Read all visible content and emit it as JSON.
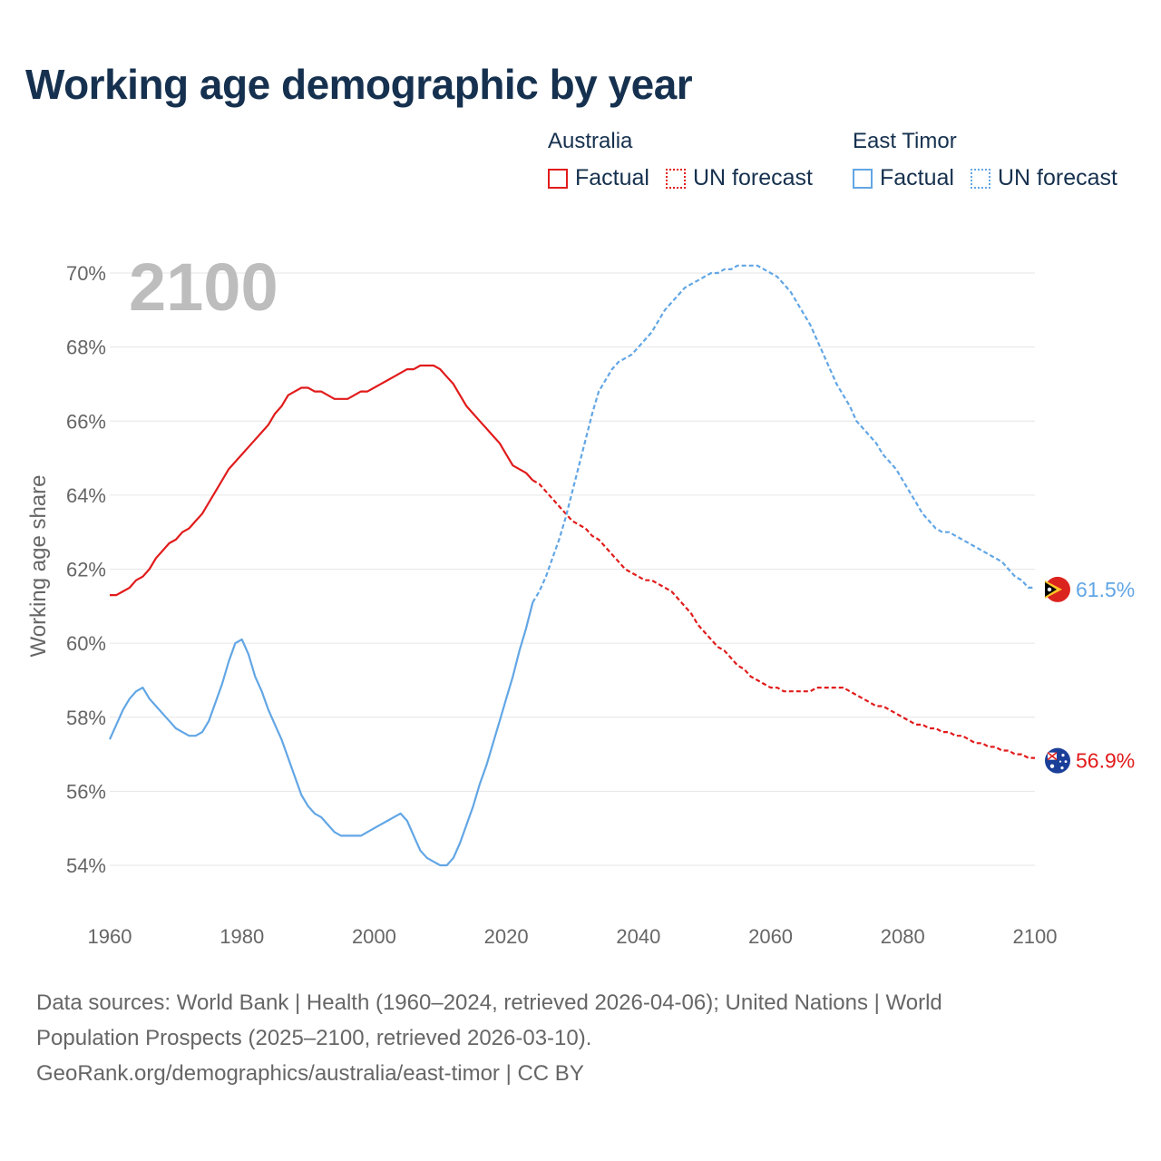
{
  "title": "Working age demographic by year",
  "legend": {
    "australia": {
      "name": "Australia",
      "factual": "Factual",
      "forecast": "UN forecast"
    },
    "east_timor": {
      "name": "East Timor",
      "factual": "Factual",
      "forecast": "UN forecast"
    }
  },
  "colors": {
    "australia": "#e11b1b",
    "east_timor": "#62a6e5",
    "title": "#16314f",
    "axis_text": "#666666",
    "grid": "#e6e6e6",
    "year_watermark": "#bdbdbd"
  },
  "year_label": "2100",
  "end_labels": {
    "australia": "56.9%",
    "east_timor": "61.5%"
  },
  "footer": {
    "line1": "Data sources: World Bank | Health (1960–2024, retrieved 2026-04-06); United Nations | World",
    "line2": "Population Prospects (2025–2100, retrieved 2026-03-10).",
    "line3": "GeoRank.org/demographics/australia/east-timor | CC BY"
  },
  "chart_data": {
    "type": "line",
    "title": "Working age demographic by year",
    "xlabel": "",
    "ylabel": "Working age share",
    "xlim": [
      1960,
      2100
    ],
    "ylim": [
      53,
      71
    ],
    "x_ticks": [
      1960,
      1980,
      2000,
      2020,
      2040,
      2060,
      2080,
      2100
    ],
    "x_tick_labels": [
      "1960",
      "1980",
      "2000",
      "2020",
      "2040",
      "2060",
      "2080",
      "2100"
    ],
    "y_ticks": [
      54,
      56,
      58,
      60,
      62,
      64,
      66,
      68,
      70
    ],
    "y_tick_labels": [
      "54%",
      "56%",
      "58%",
      "60%",
      "62%",
      "64%",
      "66%",
      "68%",
      "70%"
    ],
    "forecast_start": 2024,
    "series": [
      {
        "name": "Australia",
        "color": "#e11b1b",
        "x": [
          1960,
          1961,
          1962,
          1963,
          1964,
          1965,
          1966,
          1967,
          1968,
          1969,
          1970,
          1971,
          1972,
          1973,
          1974,
          1975,
          1976,
          1977,
          1978,
          1979,
          1980,
          1981,
          1982,
          1983,
          1984,
          1985,
          1986,
          1987,
          1988,
          1989,
          1990,
          1991,
          1992,
          1993,
          1994,
          1995,
          1996,
          1997,
          1998,
          1999,
          2000,
          2001,
          2002,
          2003,
          2004,
          2005,
          2006,
          2007,
          2008,
          2009,
          2010,
          2011,
          2012,
          2013,
          2014,
          2015,
          2016,
          2017,
          2018,
          2019,
          2020,
          2021,
          2022,
          2023,
          2024,
          2025,
          2026,
          2027,
          2028,
          2029,
          2030,
          2031,
          2032,
          2033,
          2034,
          2035,
          2036,
          2037,
          2038,
          2039,
          2040,
          2041,
          2042,
          2043,
          2044,
          2045,
          2046,
          2047,
          2048,
          2049,
          2050,
          2051,
          2052,
          2053,
          2054,
          2055,
          2056,
          2057,
          2058,
          2059,
          2060,
          2061,
          2062,
          2063,
          2064,
          2065,
          2066,
          2067,
          2068,
          2069,
          2070,
          2071,
          2072,
          2073,
          2074,
          2075,
          2076,
          2077,
          2078,
          2079,
          2080,
          2081,
          2082,
          2083,
          2084,
          2085,
          2086,
          2087,
          2088,
          2089,
          2090,
          2091,
          2092,
          2093,
          2094,
          2095,
          2096,
          2097,
          2098,
          2099,
          2100
        ],
        "values": [
          61.3,
          61.3,
          61.4,
          61.5,
          61.7,
          61.8,
          62.0,
          62.3,
          62.5,
          62.7,
          62.8,
          63.0,
          63.1,
          63.3,
          63.5,
          63.8,
          64.1,
          64.4,
          64.7,
          64.9,
          65.1,
          65.3,
          65.5,
          65.7,
          65.9,
          66.2,
          66.4,
          66.7,
          66.8,
          66.9,
          66.9,
          66.8,
          66.8,
          66.7,
          66.6,
          66.6,
          66.6,
          66.7,
          66.8,
          66.8,
          66.9,
          67.0,
          67.1,
          67.2,
          67.3,
          67.4,
          67.4,
          67.5,
          67.5,
          67.5,
          67.4,
          67.2,
          67.0,
          66.7,
          66.4,
          66.2,
          66.0,
          65.8,
          65.6,
          65.4,
          65.1,
          64.8,
          64.7,
          64.6,
          64.4,
          64.3,
          64.1,
          63.9,
          63.7,
          63.5,
          63.3,
          63.2,
          63.1,
          62.9,
          62.8,
          62.6,
          62.4,
          62.2,
          62.0,
          61.9,
          61.8,
          61.7,
          61.7,
          61.6,
          61.5,
          61.4,
          61.2,
          61.0,
          60.8,
          60.5,
          60.3,
          60.1,
          59.9,
          59.8,
          59.6,
          59.4,
          59.3,
          59.1,
          59.0,
          58.9,
          58.8,
          58.8,
          58.7,
          58.7,
          58.7,
          58.7,
          58.7,
          58.8,
          58.8,
          58.8,
          58.8,
          58.8,
          58.7,
          58.6,
          58.5,
          58.4,
          58.3,
          58.3,
          58.2,
          58.1,
          58.0,
          57.9,
          57.8,
          57.8,
          57.7,
          57.7,
          57.6,
          57.6,
          57.5,
          57.5,
          57.4,
          57.3,
          57.3,
          57.2,
          57.2,
          57.1,
          57.1,
          57.0,
          57.0,
          56.9,
          56.9
        ]
      },
      {
        "name": "East Timor",
        "color": "#62a6e5",
        "x": [
          1960,
          1961,
          1962,
          1963,
          1964,
          1965,
          1966,
          1967,
          1968,
          1969,
          1970,
          1971,
          1972,
          1973,
          1974,
          1975,
          1976,
          1977,
          1978,
          1979,
          1980,
          1981,
          1982,
          1983,
          1984,
          1985,
          1986,
          1987,
          1988,
          1989,
          1990,
          1991,
          1992,
          1993,
          1994,
          1995,
          1996,
          1997,
          1998,
          1999,
          2000,
          2001,
          2002,
          2003,
          2004,
          2005,
          2006,
          2007,
          2008,
          2009,
          2010,
          2011,
          2012,
          2013,
          2014,
          2015,
          2016,
          2017,
          2018,
          2019,
          2020,
          2021,
          2022,
          2023,
          2024,
          2025,
          2026,
          2027,
          2028,
          2029,
          2030,
          2031,
          2032,
          2033,
          2034,
          2035,
          2036,
          2037,
          2038,
          2039,
          2040,
          2041,
          2042,
          2043,
          2044,
          2045,
          2046,
          2047,
          2048,
          2049,
          2050,
          2051,
          2052,
          2053,
          2054,
          2055,
          2056,
          2057,
          2058,
          2059,
          2060,
          2061,
          2062,
          2063,
          2064,
          2065,
          2066,
          2067,
          2068,
          2069,
          2070,
          2071,
          2072,
          2073,
          2074,
          2075,
          2076,
          2077,
          2078,
          2079,
          2080,
          2081,
          2082,
          2083,
          2084,
          2085,
          2086,
          2087,
          2088,
          2089,
          2090,
          2091,
          2092,
          2093,
          2094,
          2095,
          2096,
          2097,
          2098,
          2099,
          2100
        ],
        "values": [
          57.4,
          57.8,
          58.2,
          58.5,
          58.7,
          58.8,
          58.5,
          58.3,
          58.1,
          57.9,
          57.7,
          57.6,
          57.5,
          57.5,
          57.6,
          57.9,
          58.4,
          58.9,
          59.5,
          60.0,
          60.1,
          59.7,
          59.1,
          58.7,
          58.2,
          57.8,
          57.4,
          56.9,
          56.4,
          55.9,
          55.6,
          55.4,
          55.3,
          55.1,
          54.9,
          54.8,
          54.8,
          54.8,
          54.8,
          54.9,
          55.0,
          55.1,
          55.2,
          55.3,
          55.4,
          55.2,
          54.8,
          54.4,
          54.2,
          54.1,
          54.0,
          54.0,
          54.2,
          54.6,
          55.1,
          55.6,
          56.2,
          56.7,
          57.3,
          57.9,
          58.5,
          59.1,
          59.8,
          60.4,
          61.1,
          61.4,
          61.8,
          62.3,
          62.8,
          63.4,
          64.1,
          64.8,
          65.5,
          66.2,
          66.8,
          67.1,
          67.4,
          67.6,
          67.7,
          67.8,
          68.0,
          68.2,
          68.4,
          68.7,
          69.0,
          69.2,
          69.4,
          69.6,
          69.7,
          69.8,
          69.9,
          70.0,
          70.0,
          70.1,
          70.1,
          70.2,
          70.2,
          70.2,
          70.2,
          70.1,
          70.0,
          69.9,
          69.7,
          69.5,
          69.2,
          68.9,
          68.6,
          68.2,
          67.8,
          67.4,
          67.0,
          66.7,
          66.4,
          66.0,
          65.8,
          65.6,
          65.4,
          65.1,
          64.9,
          64.7,
          64.4,
          64.1,
          63.8,
          63.5,
          63.3,
          63.1,
          63.0,
          63.0,
          62.9,
          62.8,
          62.7,
          62.6,
          62.5,
          62.4,
          62.3,
          62.2,
          62.0,
          61.8,
          61.7,
          61.5,
          61.5
        ]
      }
    ]
  }
}
